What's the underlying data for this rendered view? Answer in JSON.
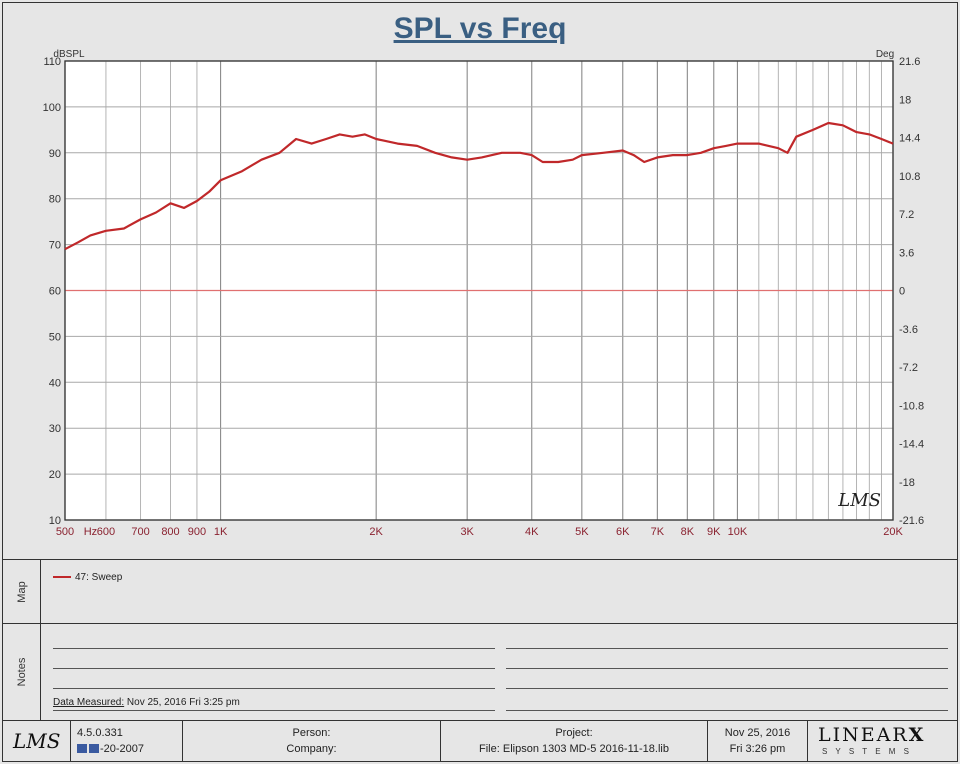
{
  "chart_data": {
    "type": "line",
    "title": "SPL vs Freq",
    "ylabel_left": "dBSPL",
    "ylabel_right": "Deg",
    "xscale": "log",
    "xlim": [
      500,
      20000
    ],
    "ylim": [
      10,
      110
    ],
    "ylim_right": [
      -21.6,
      21.6
    ],
    "x_ticks": [
      {
        "v": 500,
        "label": "500"
      },
      {
        "v": 560,
        "label": "Hz"
      },
      {
        "v": 600,
        "label": "600"
      },
      {
        "v": 700,
        "label": "700"
      },
      {
        "v": 800,
        "label": "800"
      },
      {
        "v": 900,
        "label": "900"
      },
      {
        "v": 1000,
        "label": "1K"
      },
      {
        "v": 2000,
        "label": "2K"
      },
      {
        "v": 3000,
        "label": "3K"
      },
      {
        "v": 4000,
        "label": "4K"
      },
      {
        "v": 5000,
        "label": "5K"
      },
      {
        "v": 6000,
        "label": "6K"
      },
      {
        "v": 7000,
        "label": "7K"
      },
      {
        "v": 8000,
        "label": "8K"
      },
      {
        "v": 9000,
        "label": "9K"
      },
      {
        "v": 10000,
        "label": "10K"
      },
      {
        "v": 20000,
        "label": "20K"
      }
    ],
    "y_ticks_left": [
      "110",
      "100",
      "90",
      "80",
      "70",
      "60",
      "50",
      "40",
      "30",
      "20",
      "10"
    ],
    "y_ticks_right": [
      "21.6",
      "18",
      "14.4",
      "10.8",
      "7.2",
      "3.6",
      "0",
      "-3.6",
      "-7.2",
      "-10.8",
      "-14.4",
      "-18",
      "-21.6"
    ],
    "grid": true,
    "reference_line": {
      "y": 60,
      "color": "#e07070"
    },
    "watermark": "LMS",
    "series": [
      {
        "name": "47: Sweep",
        "color": "#c0282a",
        "x": [
          500,
          530,
          560,
          600,
          650,
          700,
          750,
          800,
          850,
          900,
          950,
          1000,
          1100,
          1200,
          1300,
          1400,
          1500,
          1600,
          1700,
          1800,
          1900,
          2000,
          2100,
          2200,
          2400,
          2600,
          2800,
          3000,
          3200,
          3500,
          3800,
          4000,
          4200,
          4500,
          4800,
          5000,
          5500,
          6000,
          6300,
          6600,
          7000,
          7500,
          8000,
          8500,
          9000,
          9500,
          10000,
          11000,
          12000,
          12500,
          13000,
          14000,
          15000,
          16000,
          17000,
          18000,
          19000,
          20000
        ],
        "y": [
          69,
          70.5,
          72,
          73,
          73.5,
          75.5,
          77,
          79,
          78,
          79.5,
          81.5,
          84,
          86,
          88.5,
          90,
          93,
          92,
          93,
          94,
          93.5,
          94,
          93,
          92.5,
          92,
          91.5,
          90,
          89,
          88.5,
          89,
          90,
          90,
          89.5,
          88,
          88,
          88.5,
          89.5,
          90,
          90.5,
          89.5,
          88,
          89,
          89.5,
          89.5,
          90,
          91,
          91.5,
          92,
          92,
          91,
          90,
          93.5,
          95,
          96.5,
          96,
          94.5,
          94,
          93,
          92
        ]
      }
    ]
  },
  "legend": {
    "label": "47: Sweep"
  },
  "sections": {
    "map_label": "Map",
    "notes_label": "Notes"
  },
  "notes": {
    "data_measured_label": "Data Measured:",
    "data_measured_value": " Nov 25, 2016  Fri  3:25 pm"
  },
  "footer": {
    "logo": "LMS",
    "version": "4.5.0.331",
    "build": "-20-2007",
    "person_label": "Person:",
    "company_label": "Company:",
    "project_label": "Project:",
    "file_text": "File: Elipson 1303 MD-5 2016-11-18.lib",
    "date": "Nov 25, 2016",
    "time": "Fri  3:26 pm",
    "brand": "LINEAR",
    "brand_x": "X",
    "brand_sub": "S Y S T E M S"
  }
}
